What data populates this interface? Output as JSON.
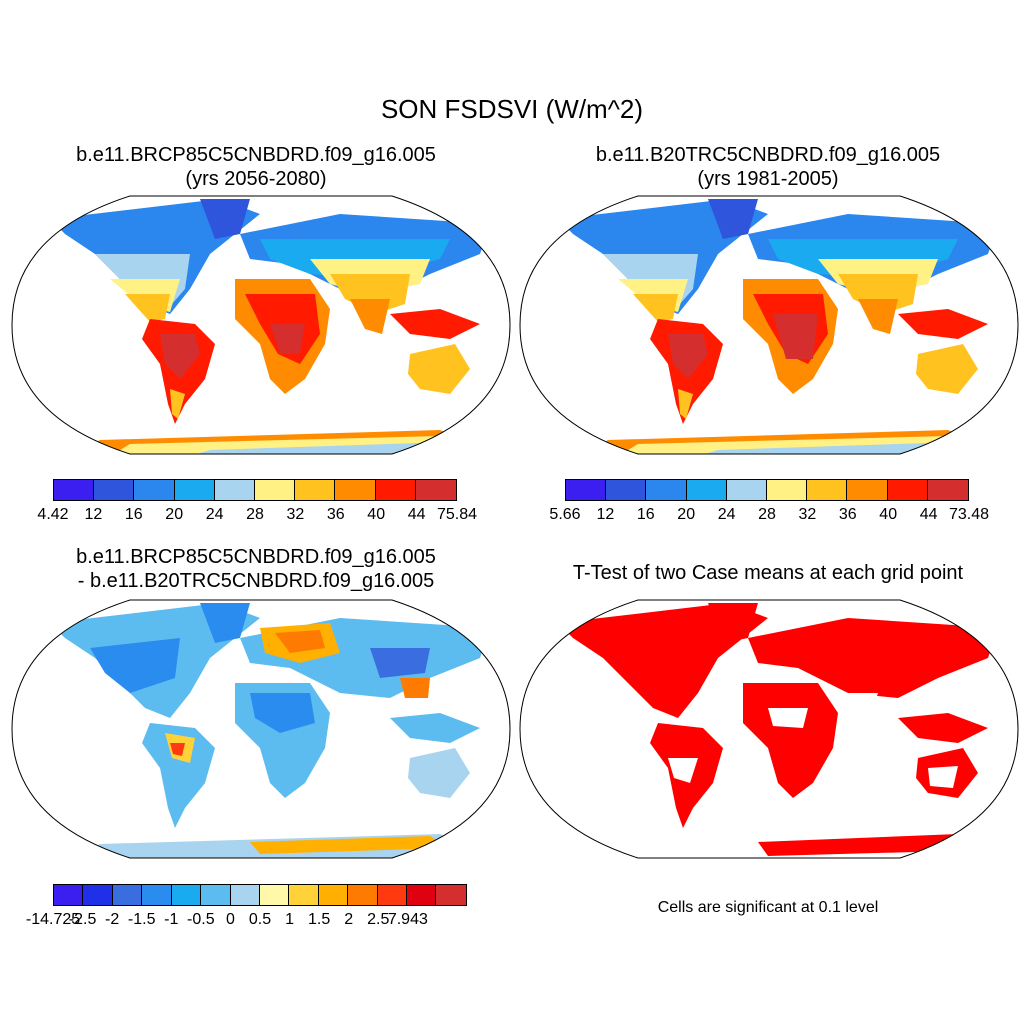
{
  "main_title": "SON FSDSVI (W/m^2)",
  "panels": [
    {
      "title_line1": "b.e11.BRCP85C5CNBDRD.f09_g16.005",
      "title_line2": "(yrs 2056-2080)"
    },
    {
      "title_line1": "b.e11.B20TRC5CNBDRD.f09_g16.005",
      "title_line2": "(yrs 1981-2005)"
    },
    {
      "title_line1": "b.e11.BRCP85C5CNBDRD.f09_g16.005",
      "title_line2": "- b.e11.B20TRC5CNBDRD.f09_g16.005"
    },
    {
      "title_line1": "T-Test of two Case means at each grid point",
      "title_line2": ""
    }
  ],
  "significance_note": "Cells are significant at 0.1 level",
  "colorbars": [
    {
      "labels": [
        "4.42",
        "12",
        "16",
        "20",
        "24",
        "28",
        "32",
        "36",
        "40",
        "44",
        "75.84"
      ],
      "colors": [
        "#3a1ff0",
        "#2e55dc",
        "#2b86ee",
        "#1aaaf0",
        "#a8d4f0",
        "#fff184",
        "#ffc21f",
        "#ff8c00",
        "#ff1a00",
        "#d42e2e"
      ]
    },
    {
      "labels": [
        "5.66",
        "12",
        "16",
        "20",
        "24",
        "28",
        "32",
        "36",
        "40",
        "44",
        "73.48"
      ],
      "colors": [
        "#3a1ff0",
        "#2e55dc",
        "#2b86ee",
        "#1aaaf0",
        "#a8d4f0",
        "#fff184",
        "#ffc21f",
        "#ff8c00",
        "#ff1a00",
        "#d42e2e"
      ]
    },
    {
      "labels": [
        "-14.725",
        "-2.5",
        "-2",
        "-1.5",
        "-1",
        "-0.5",
        "0",
        "0.5",
        "1",
        "1.5",
        "2",
        "2.5",
        "7.943"
      ],
      "colors": [
        "#3a1ff0",
        "#2030e8",
        "#3a6ee0",
        "#2b8cf0",
        "#1aaaf0",
        "#5cbcf0",
        "#a8d4f0",
        "#fff8a8",
        "#ffd23a",
        "#ffb000",
        "#ff7a00",
        "#ff3a10",
        "#e00010",
        "#d42e2e"
      ]
    }
  ],
  "map_fill_colors": {
    "ocean": "#ffffff",
    "panel1": {
      "high_lat": "#2e55dc",
      "mid_lat": "#1aaaf0",
      "subtrop": "#ffc21f",
      "tropics": "#ff1a00",
      "max": "#d42e2e"
    },
    "panel2": {
      "high_lat": "#2e55dc",
      "mid_lat": "#1aaaf0",
      "subtrop": "#ffc21f",
      "tropics": "#ff1a00",
      "max": "#d42e2e"
    },
    "panel3": {
      "land": "#5cbcf0",
      "neg": "#2b8cf0",
      "pos": "#ff8c00",
      "neutral": "#a8d4f0"
    },
    "panel4": {
      "significant": "#ff0000"
    }
  }
}
